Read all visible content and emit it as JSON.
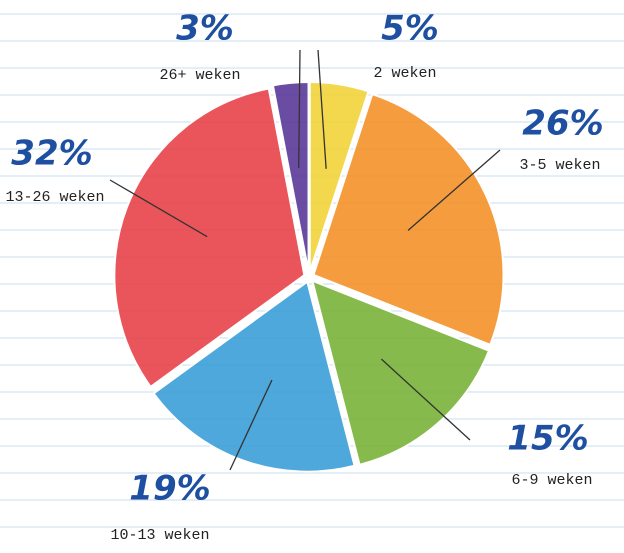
{
  "chart_data": {
    "type": "pie",
    "categories": [
      "2 weken",
      "3-5 weken",
      "6-9 weken",
      "10-13 weken",
      "13-26 weken",
      "26+ weken"
    ],
    "values": [
      5,
      26,
      15,
      19,
      32,
      3
    ],
    "value_labels": [
      "5%",
      "26%",
      "15%",
      "19%",
      "32%",
      "3%"
    ],
    "colors": [
      "#f2d43a",
      "#f5922a",
      "#7ab33a",
      "#3b9fd8",
      "#e8434a",
      "#5a3a9a"
    ]
  }
}
